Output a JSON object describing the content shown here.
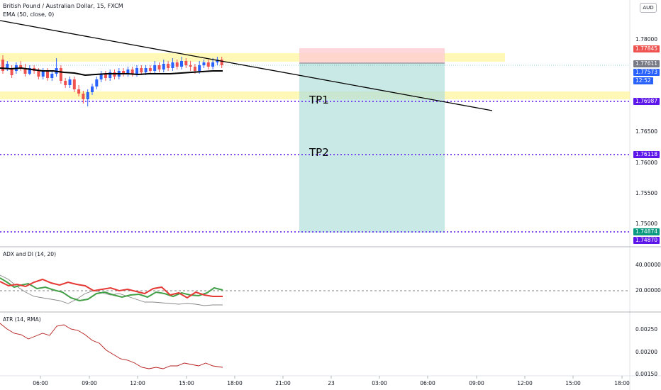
{
  "header": {
    "symbol_line": "British Pound / Australian Dollar, 15, FXCM",
    "ema_line": "EMA (50, close, 0)",
    "currency_button": "AUD"
  },
  "main_axis_labels": [
    "1.78000",
    "1.76500",
    "1.76000",
    "1.75500",
    "1.75000"
  ],
  "price_tags": [
    {
      "text": "1.77845",
      "color": "#ef5350"
    },
    {
      "text": "1.77611",
      "color": "#787b86"
    },
    {
      "text": "1.77573",
      "color": "#2962ff"
    },
    {
      "text": "12:52",
      "color": "#2962ff"
    },
    {
      "text": "1.76987",
      "color": "#5e17eb"
    },
    {
      "text": "1.76118",
      "color": "#5e17eb"
    },
    {
      "text": "1.74874",
      "color": "#089981"
    },
    {
      "text": "1.74870",
      "color": "#5e17eb"
    }
  ],
  "annotations": {
    "tp1": "TP1",
    "tp2": "TP2"
  },
  "adx_panel": {
    "title": "ADX and DI (14, 20)",
    "axis_labels": [
      "40.00000",
      "20.00000"
    ]
  },
  "atr_panel": {
    "title": "ATR (14, RMA)",
    "axis_labels": [
      "0.00250",
      "0.00200",
      "0.00150"
    ]
  },
  "time_labels": [
    "06:00",
    "09:00",
    "12:00",
    "15:00",
    "18:00",
    "21:00",
    "23",
    "03:00",
    "06:00",
    "09:00",
    "12:00",
    "15:00",
    "18:00"
  ],
  "colors": {
    "bull": "#2962ff",
    "bear": "#ef5350",
    "ema": "#000000",
    "zone": "#fff59d",
    "target": "#b2dfdb",
    "stop": "#ffcdd2",
    "level": "#5e17eb",
    "adx_green": "#43a047",
    "adx_red": "#e53935"
  }
}
